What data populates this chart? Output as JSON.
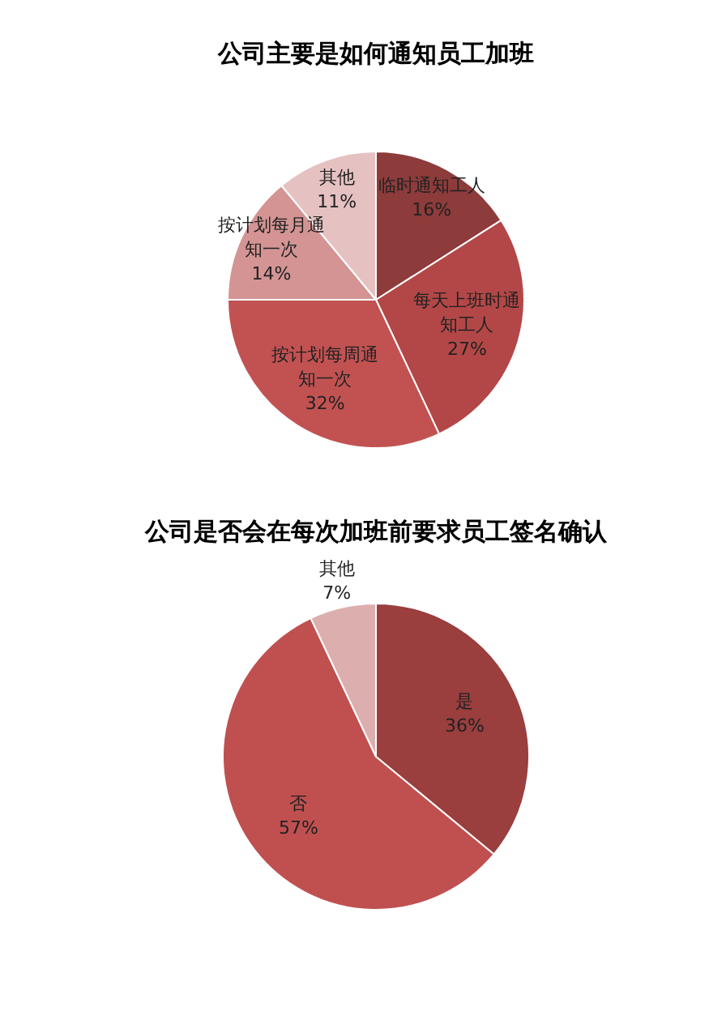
{
  "chart_data": [
    {
      "type": "pie",
      "title": "公司主要是如何通知员工加班",
      "categories": [
        "临时通知工人",
        "每天上班时通知工人",
        "按计划每周通知一次",
        "按计划每月通知一次",
        "其他"
      ],
      "values": [
        16,
        27,
        32,
        14,
        11
      ],
      "value_labels": [
        "16%",
        "27%",
        "32%",
        "14%",
        "11%"
      ],
      "colors": [
        "#8e3b3b",
        "#b34747",
        "#c25252",
        "#d49494",
        "#e6c1c1"
      ]
    },
    {
      "type": "pie",
      "title": "公司是否会在每次加班前要求员工签名确认",
      "categories": [
        "是",
        "否",
        "其他"
      ],
      "values": [
        36,
        57,
        7
      ],
      "value_labels": [
        "36%",
        "57%",
        "7%"
      ],
      "colors": [
        "#9a3e3e",
        "#c05050",
        "#dcaeae"
      ]
    }
  ]
}
